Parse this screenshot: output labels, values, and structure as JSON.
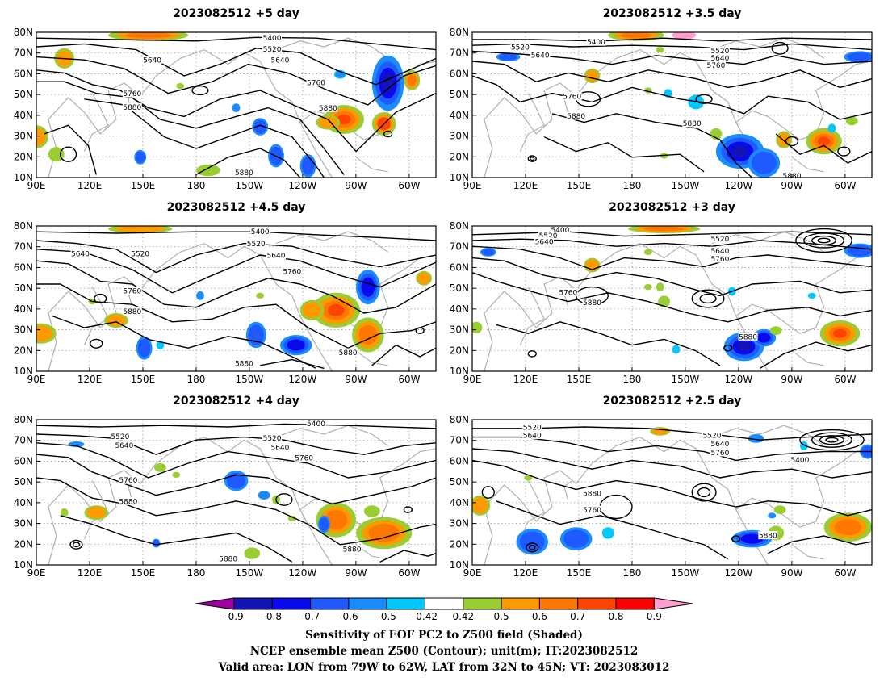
{
  "panels": [
    {
      "title": "2023082512 +5 day",
      "labels": [
        "5400",
        "5520",
        "5640",
        "5640",
        "5760",
        "5760",
        "5880",
        "5880",
        "5880"
      ]
    },
    {
      "title": "2023082512 +3.5 day",
      "labels": [
        "5400",
        "5520",
        "5640",
        "5520",
        "5640",
        "5760",
        "5760",
        "5880",
        "5880",
        "5880"
      ]
    },
    {
      "title": "2023082512 +4.5 day",
      "labels": [
        "5400",
        "5520",
        "5640",
        "5520",
        "5640",
        "5760",
        "5760",
        "5880",
        "5880",
        "5880"
      ]
    },
    {
      "title": "2023082512 +3 day",
      "labels": [
        "5400",
        "5520",
        "5640",
        "5520",
        "5640",
        "5760",
        "5760",
        "5880",
        "5880"
      ]
    },
    {
      "title": "2023082512 +4 day",
      "labels": [
        "5400",
        "5520",
        "5640",
        "5520",
        "5640",
        "5760",
        "5760",
        "5880",
        "5880",
        "5880"
      ]
    },
    {
      "title": "2023082512 +2.5 day",
      "labels": [
        "5520",
        "5640",
        "5400",
        "5640",
        "5760",
        "5520",
        "5760",
        "5880",
        "5880"
      ]
    }
  ],
  "axes": {
    "lat_ticks": [
      "80N",
      "70N",
      "60N",
      "50N",
      "40N",
      "30N",
      "20N",
      "10N"
    ],
    "lon_ticks": [
      "90E",
      "120E",
      "150E",
      "180",
      "150W",
      "120W",
      "90W",
      "60W"
    ]
  },
  "colorbar": {
    "colors": [
      "#a0009f",
      "#1414b4",
      "#0a0aee",
      "#1e5aff",
      "#1a8cff",
      "#00c8ff",
      "#ffffff",
      "#9acd32",
      "#ff9900",
      "#ff7700",
      "#ff4400",
      "#ff0000",
      "#ff9ecf"
    ],
    "labels": [
      "-0.9",
      "-0.8",
      "-0.7",
      "-0.6",
      "-0.5",
      "-0.42",
      "0.42",
      "0.5",
      "0.6",
      "0.7",
      "0.8",
      "0.9"
    ]
  },
  "footer": {
    "line1": "Sensitivity of EOF PC2 to Z500 field (Shaded)",
    "line2": "NCEP ensemble mean Z500 (Contour); unit(m); IT:2023082512",
    "line3": "Valid area: LON from 79W to 62W, LAT from 32N to 45N; VT: 2023083012"
  }
}
